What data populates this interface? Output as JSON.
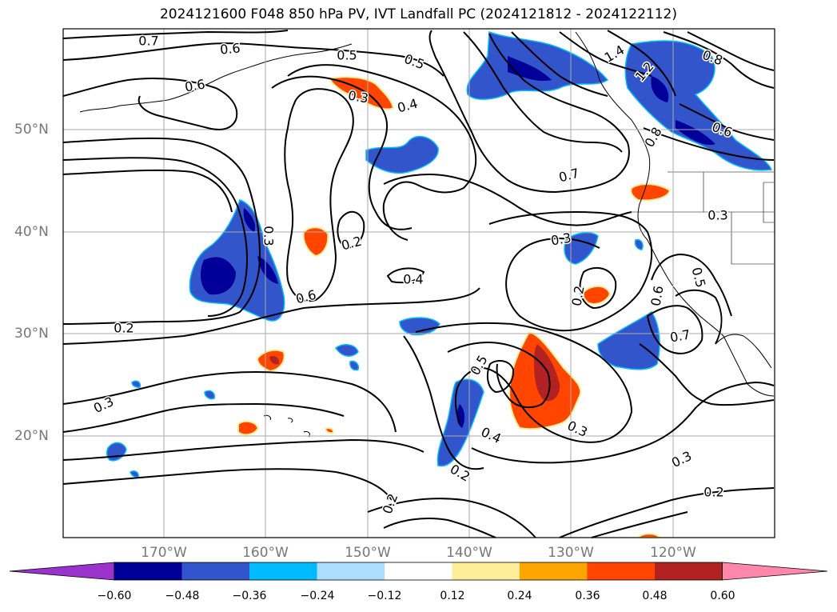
{
  "title": "2024121600 F048 850 hPa PV, IVT Landfall PC (2024121812 - 2024122112)",
  "axes": {
    "lat_labels": [
      "50°N",
      "40°N",
      "30°N",
      "20°N"
    ],
    "lon_labels": [
      "170°W",
      "160°W",
      "150°W",
      "140°W",
      "130°W",
      "120°W"
    ]
  },
  "contour_labels": [
    {
      "text": "0.7"
    },
    {
      "text": "0.6"
    },
    {
      "text": "0.5"
    },
    {
      "text": "0.5"
    },
    {
      "text": "0.6"
    },
    {
      "text": "0.3"
    },
    {
      "text": "0.4"
    },
    {
      "text": "0.3"
    },
    {
      "text": "0.2"
    },
    {
      "text": "0.6"
    },
    {
      "text": "0.4"
    },
    {
      "text": "0.2"
    },
    {
      "text": "0.3"
    },
    {
      "text": "0.7"
    },
    {
      "text": "0.3"
    },
    {
      "text": "0.2"
    },
    {
      "text": "0.5"
    },
    {
      "text": "0.4"
    },
    {
      "text": "0.3"
    },
    {
      "text": "0.2"
    },
    {
      "text": "0.3"
    },
    {
      "text": "0.2"
    },
    {
      "text": "0.2"
    },
    {
      "text": "0.6"
    },
    {
      "text": "0.5"
    },
    {
      "text": "0.7"
    },
    {
      "text": "1.4"
    },
    {
      "text": "1.2"
    },
    {
      "text": "0.8"
    },
    {
      "text": "0.6"
    },
    {
      "text": "0.8"
    },
    {
      "text": "0.3"
    }
  ],
  "colorbar": {
    "ticks": [
      "−0.60",
      "−0.48",
      "−0.36",
      "−0.24",
      "−0.12",
      "0.12",
      "0.24",
      "0.36",
      "0.48",
      "0.60"
    ],
    "colors": [
      "#9933cc",
      "#000099",
      "#3355cc",
      "#00bbff",
      "#aaddff",
      "#ffffff",
      "#ffee99",
      "#ffa500",
      "#ff4500",
      "#b22222",
      "#ff88aa"
    ]
  },
  "colors": {
    "contour": "#000000",
    "grid": "#aaaaaa",
    "axis_label": "#777777"
  }
}
